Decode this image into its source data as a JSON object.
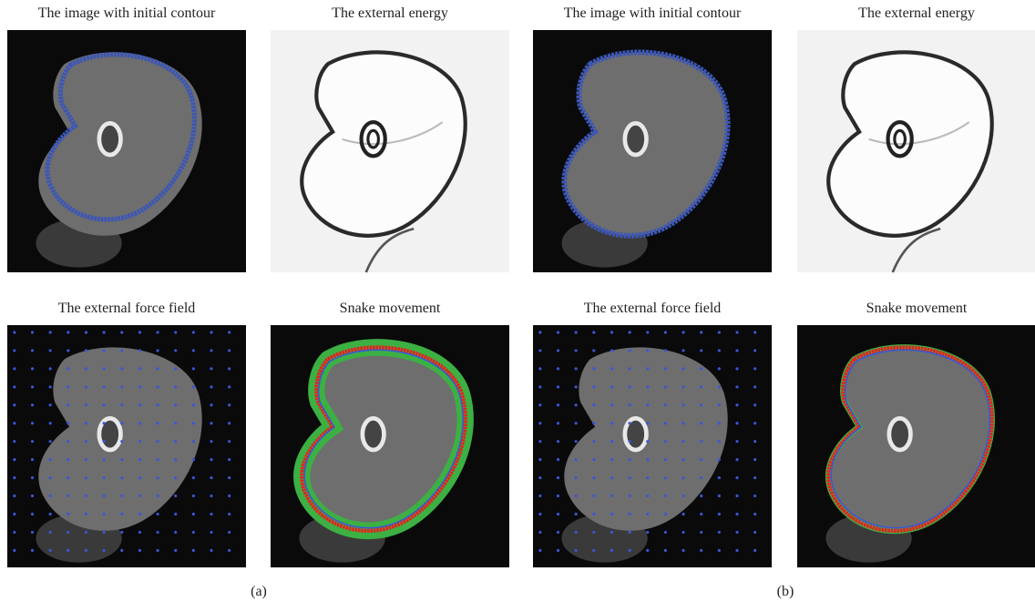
{
  "panels": [
    {
      "label": "(a)",
      "images": [
        {
          "title": "The image with initial contour"
        },
        {
          "title": "The external energy"
        },
        {
          "title": "The external force field"
        },
        {
          "title": "Snake movement"
        }
      ]
    },
    {
      "label": "(b)",
      "images": [
        {
          "title": "The image with initial contour"
        },
        {
          "title": "The external energy"
        },
        {
          "title": "The external force field"
        },
        {
          "title": "Snake movement"
        }
      ]
    }
  ]
}
